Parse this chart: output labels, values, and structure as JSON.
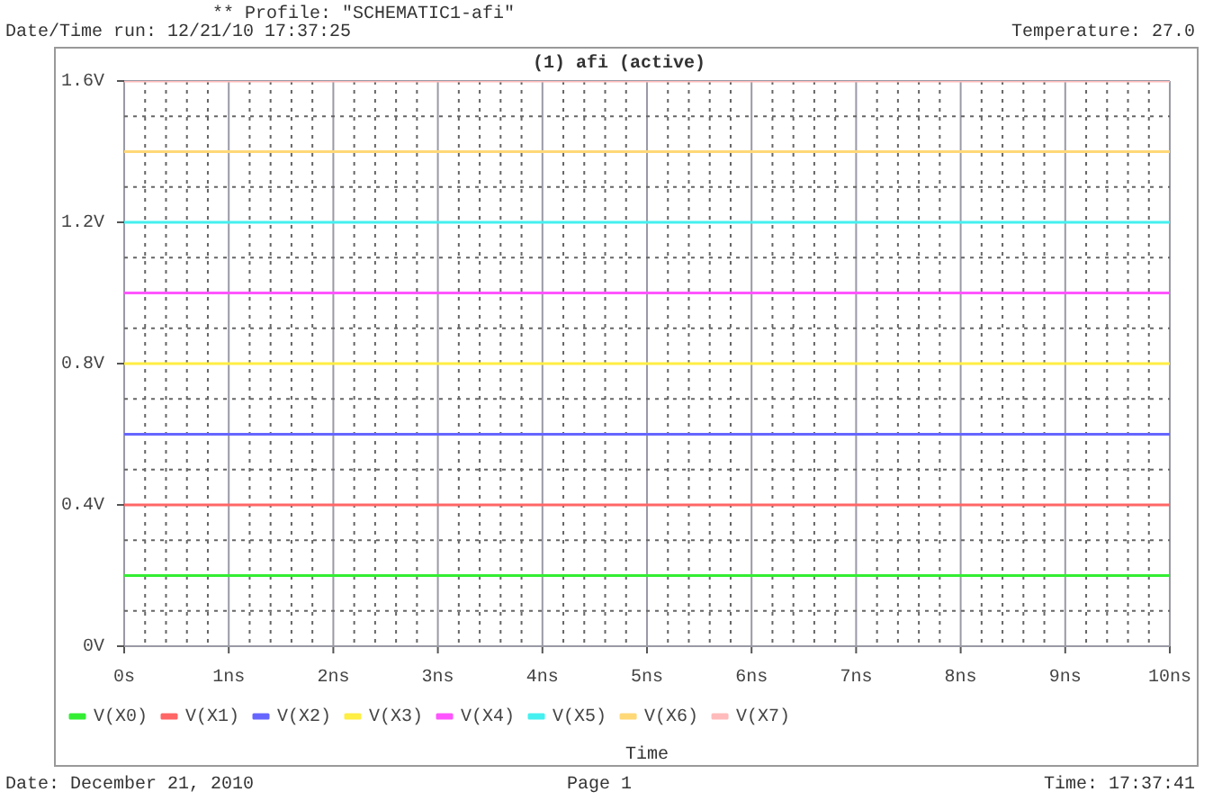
{
  "chart_data": {
    "type": "line",
    "title": "(1) afi (active)",
    "xlabel": "Time",
    "annotations": [
      "** Profile: \"SCHEMATIC1-afi\"",
      "Date/Time run: 12/21/10 17:37:25",
      "Temperature: 27.0",
      "Date: December 21, 2010",
      "Page 1",
      "Time: 17:37:41"
    ],
    "x": [
      0,
      10
    ],
    "series": [
      {
        "name": "V(X0)",
        "color": "#33ee33",
        "values": [
          0.2,
          0.2
        ]
      },
      {
        "name": "V(X1)",
        "color": "#ff6666",
        "values": [
          0.4,
          0.4
        ]
      },
      {
        "name": "V(X2)",
        "color": "#6666ff",
        "values": [
          0.6,
          0.6
        ]
      },
      {
        "name": "V(X3)",
        "color": "#ffee44",
        "values": [
          0.8,
          0.8
        ]
      },
      {
        "name": "V(X4)",
        "color": "#ff55ff",
        "values": [
          1.0,
          1.0
        ]
      },
      {
        "name": "V(X5)",
        "color": "#44f0f0",
        "values": [
          1.2,
          1.2
        ]
      },
      {
        "name": "V(X6)",
        "color": "#ffd877",
        "values": [
          1.4,
          1.4
        ]
      },
      {
        "name": "V(X7)",
        "color": "#ffbbbb",
        "values": [
          1.6,
          1.6
        ]
      }
    ],
    "xlim": [
      0,
      10
    ],
    "xticks": [
      {
        "value": 0,
        "label": "0s"
      },
      {
        "value": 0.2,
        "label": null
      },
      {
        "value": 0.4,
        "label": null
      },
      {
        "value": 0.6,
        "label": null
      },
      {
        "value": 0.8,
        "label": null
      },
      {
        "value": 1,
        "label": "1ns"
      },
      {
        "value": 1.2,
        "label": null
      },
      {
        "value": 1.4,
        "label": null
      },
      {
        "value": 1.6,
        "label": null
      },
      {
        "value": 1.8,
        "label": null
      },
      {
        "value": 2,
        "label": "2ns"
      },
      {
        "value": 2.2,
        "label": null
      },
      {
        "value": 2.4,
        "label": null
      },
      {
        "value": 2.6,
        "label": null
      },
      {
        "value": 2.8,
        "label": null
      },
      {
        "value": 3,
        "label": "3ns"
      },
      {
        "value": 3.2,
        "label": null
      },
      {
        "value": 3.4,
        "label": null
      },
      {
        "value": 3.6,
        "label": null
      },
      {
        "value": 3.8,
        "label": null
      },
      {
        "value": 4,
        "label": "4ns"
      },
      {
        "value": 4.2,
        "label": null
      },
      {
        "value": 4.4,
        "label": null
      },
      {
        "value": 4.6,
        "label": null
      },
      {
        "value": 4.8,
        "label": null
      },
      {
        "value": 5,
        "label": "5ns"
      },
      {
        "value": 5.2,
        "label": null
      },
      {
        "value": 5.4,
        "label": null
      },
      {
        "value": 5.6,
        "label": null
      },
      {
        "value": 5.8,
        "label": null
      },
      {
        "value": 6,
        "label": "6ns"
      },
      {
        "value": 6.2,
        "label": null
      },
      {
        "value": 6.4,
        "label": null
      },
      {
        "value": 6.6,
        "label": null
      },
      {
        "value": 6.8,
        "label": null
      },
      {
        "value": 7,
        "label": "7ns"
      },
      {
        "value": 7.2,
        "label": null
      },
      {
        "value": 7.4,
        "label": null
      },
      {
        "value": 7.6,
        "label": null
      },
      {
        "value": 7.8,
        "label": null
      },
      {
        "value": 8,
        "label": "8ns"
      },
      {
        "value": 8.2,
        "label": null
      },
      {
        "value": 8.4,
        "label": null
      },
      {
        "value": 8.6,
        "label": null
      },
      {
        "value": 8.8,
        "label": null
      },
      {
        "value": 9,
        "label": "9ns"
      },
      {
        "value": 9.2,
        "label": null
      },
      {
        "value": 9.4,
        "label": null
      },
      {
        "value": 9.6,
        "label": null
      },
      {
        "value": 9.8,
        "label": null
      },
      {
        "value": 10,
        "label": "10ns"
      }
    ],
    "ylim": [
      0,
      1.6
    ],
    "yticks": [
      {
        "value": 0,
        "label": "0V"
      },
      {
        "value": 0.1,
        "label": null
      },
      {
        "value": 0.2,
        "label": null
      },
      {
        "value": 0.3,
        "label": null
      },
      {
        "value": 0.4,
        "label": "0.4V"
      },
      {
        "value": 0.5,
        "label": null
      },
      {
        "value": 0.6,
        "label": null
      },
      {
        "value": 0.7,
        "label": null
      },
      {
        "value": 0.8,
        "label": "0.8V"
      },
      {
        "value": 0.9,
        "label": null
      },
      {
        "value": 1.0,
        "label": null
      },
      {
        "value": 1.1,
        "label": null
      },
      {
        "value": 1.2,
        "label": "1.2V"
      },
      {
        "value": 1.3,
        "label": null
      },
      {
        "value": 1.4,
        "label": null
      },
      {
        "value": 1.5,
        "label": null
      },
      {
        "value": 1.6,
        "label": "1.6V"
      }
    ],
    "grid": true,
    "legend": "bottom",
    "marker": "none",
    "line_style": "solid"
  }
}
